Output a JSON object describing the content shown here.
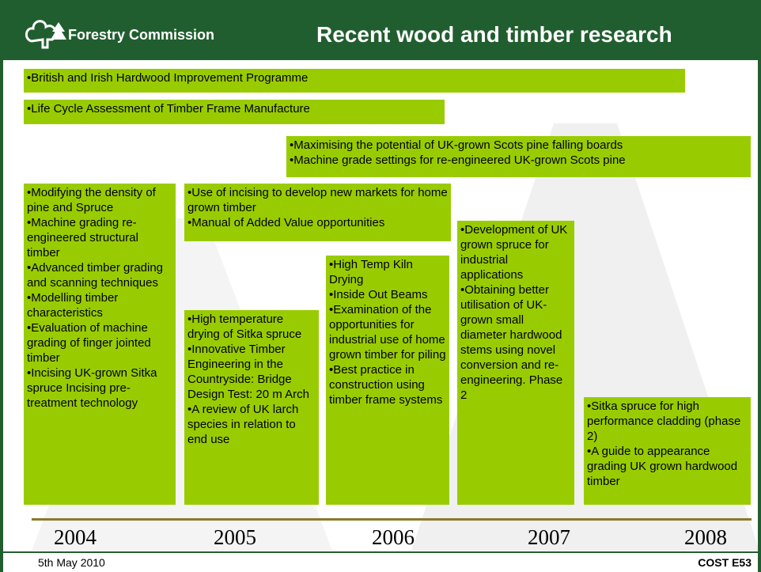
{
  "header": {
    "logo": "Forestry Commission",
    "title": "Recent wood and timber research"
  },
  "boxes": [
    {
      "items": [
        "•British and Irish Hardwood Improvement Programme"
      ]
    },
    {
      "items": [
        "•Life Cycle Assessment of Timber Frame Manufacture"
      ]
    },
    {
      "items": [
        "•Maximising the potential of UK-grown Scots pine falling boards",
        "•Machine grade settings for re-engineered UK-grown Scots pine"
      ]
    },
    {
      "items": [
        "•Modifying the density of pine and Spruce",
        "•Machine grading re-engineered structural timber",
        "•Advanced timber grading and scanning techniques",
        "•Modelling timber characteristics",
        "•Evaluation of machine grading of finger jointed timber",
        "•Incising UK-grown Sitka spruce Incising pre-treatment technology"
      ]
    },
    {
      "items": [
        "•Use of incising to develop new markets for home grown timber",
        "•Manual of Added Value opportunities"
      ]
    },
    {
      "items": [
        "•High temperature drying of Sitka spruce",
        "•Innovative Timber Engineering in the Countryside: Bridge Design Test: 20 m Arch",
        "•A review of UK larch species in relation to end use"
      ]
    },
    {
      "items": [
        "•High Temp Kiln Drying",
        "•Inside Out Beams",
        "•Examination of the opportunities for industrial use of home grown timber for piling",
        "•Best practice in construction using timber frame systems"
      ]
    },
    {
      "items": [
        "•Development of UK grown spruce for industrial applications",
        "•Obtaining better utilisation of UK-grown small diameter hardwood stems using novel conversion and re-engineering. Phase 2"
      ]
    },
    {
      "items": [
        "•Sitka spruce for high performance cladding (phase 2)",
        "•A guide to appearance grading UK grown hardwood timber"
      ]
    }
  ],
  "years": [
    "2004",
    "2005",
    "2006",
    "2007",
    "2008"
  ],
  "footer": {
    "date": "5th May 2010",
    "code": "COST E53"
  }
}
